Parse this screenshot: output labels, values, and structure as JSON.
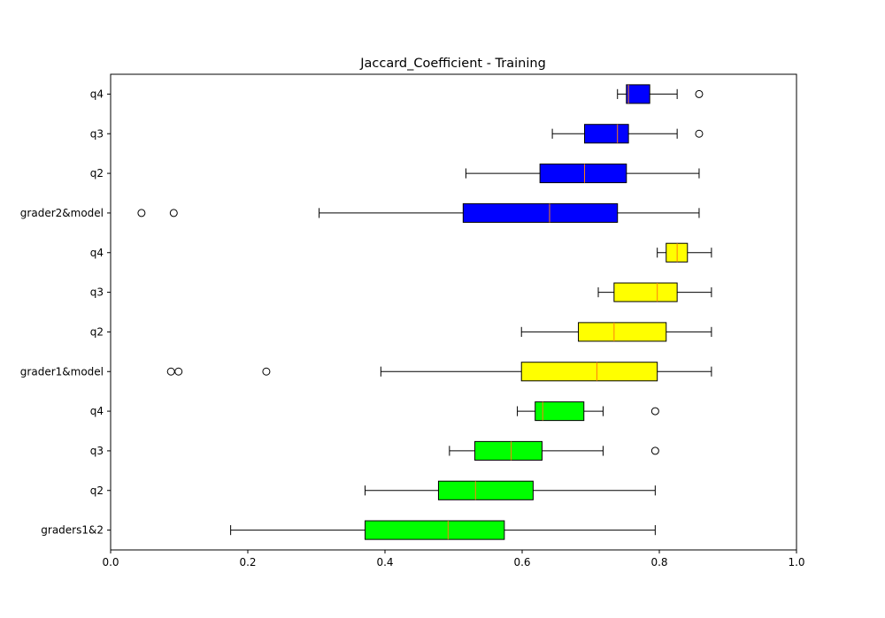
{
  "chart_data": {
    "type": "boxplot",
    "orientation": "horizontal",
    "title": "Jaccard_Coefficient - Training",
    "xlabel": "",
    "ylabel": "",
    "xlim": [
      0.0,
      1.0
    ],
    "xticks": [
      "0.0",
      "0.2",
      "0.4",
      "0.6",
      "0.8",
      "1.0"
    ],
    "grid": false,
    "median_color": "#ff7f0e",
    "categories_bottom_to_top": [
      "graders1&2",
      "q2",
      "q3",
      "q4",
      "grader1&model",
      "q2",
      "q3",
      "q4",
      "grader2&model",
      "q2",
      "q3",
      "q4"
    ],
    "boxes": [
      {
        "label": "graders1&2",
        "color": "#00ff00",
        "whisker_low": 0.175,
        "q1": 0.371,
        "median": 0.492,
        "q3": 0.574,
        "whisker_high": 0.794,
        "outliers": []
      },
      {
        "label": "q2",
        "color": "#00ff00",
        "whisker_low": 0.371,
        "q1": 0.478,
        "median": 0.532,
        "q3": 0.616,
        "whisker_high": 0.794,
        "outliers": []
      },
      {
        "label": "q3",
        "color": "#00ff00",
        "whisker_low": 0.494,
        "q1": 0.531,
        "median": 0.584,
        "q3": 0.629,
        "whisker_high": 0.718,
        "outliers": [
          0.794
        ]
      },
      {
        "label": "q4",
        "color": "#00ff00",
        "whisker_low": 0.593,
        "q1": 0.619,
        "median": 0.63,
        "q3": 0.69,
        "whisker_high": 0.718,
        "outliers": [
          0.794
        ]
      },
      {
        "label": "grader1&model",
        "color": "#ffff00",
        "whisker_low": 0.394,
        "q1": 0.599,
        "median": 0.709,
        "q3": 0.797,
        "whisker_high": 0.876,
        "outliers": [
          0.088,
          0.099,
          0.227
        ]
      },
      {
        "label": "q2",
        "color": "#ffff00",
        "whisker_low": 0.599,
        "q1": 0.682,
        "median": 0.734,
        "q3": 0.81,
        "whisker_high": 0.876,
        "outliers": []
      },
      {
        "label": "q3",
        "color": "#ffff00",
        "whisker_low": 0.711,
        "q1": 0.734,
        "median": 0.797,
        "q3": 0.826,
        "whisker_high": 0.876,
        "outliers": []
      },
      {
        "label": "q4",
        "color": "#ffff00",
        "whisker_low": 0.797,
        "q1": 0.81,
        "median": 0.826,
        "q3": 0.841,
        "whisker_high": 0.876,
        "outliers": []
      },
      {
        "label": "grader2&model",
        "color": "#0000ff",
        "whisker_low": 0.304,
        "q1": 0.514,
        "median": 0.64,
        "q3": 0.739,
        "whisker_high": 0.858,
        "outliers": [
          0.045,
          0.092
        ]
      },
      {
        "label": "q2",
        "color": "#0000ff",
        "whisker_low": 0.518,
        "q1": 0.626,
        "median": 0.691,
        "q3": 0.752,
        "whisker_high": 0.858,
        "outliers": []
      },
      {
        "label": "q3",
        "color": "#0000ff",
        "whisker_low": 0.644,
        "q1": 0.691,
        "median": 0.739,
        "q3": 0.755,
        "whisker_high": 0.826,
        "outliers": [
          0.858
        ]
      },
      {
        "label": "q4",
        "color": "#0000ff",
        "whisker_low": 0.739,
        "q1": 0.752,
        "median": 0.755,
        "q3": 0.786,
        "whisker_high": 0.826,
        "outliers": [
          0.858
        ]
      }
    ]
  }
}
